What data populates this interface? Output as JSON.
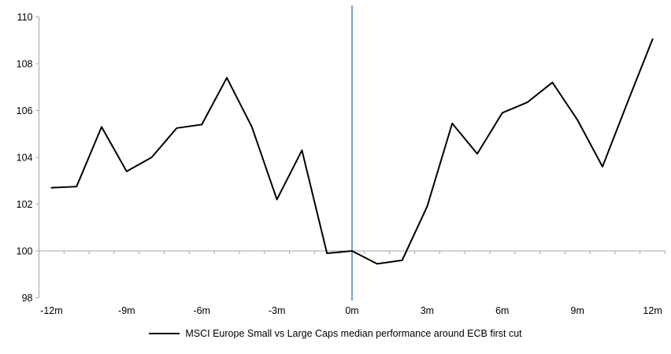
{
  "chart_data": {
    "type": "line",
    "title": "",
    "xlabel": "",
    "ylabel": "",
    "x_months": [
      -12,
      -11,
      -10,
      -9,
      -8,
      -7,
      -6,
      -5,
      -4,
      -3,
      -2,
      -1,
      0,
      1,
      2,
      3,
      4,
      5,
      6,
      7,
      8,
      9,
      10,
      11,
      12
    ],
    "series": [
      {
        "name": "MSCI Europe Small vs Large Caps median performance around ECB first cut",
        "color": "#000000",
        "values": [
          102.7,
          102.75,
          105.3,
          103.4,
          104.0,
          105.25,
          105.4,
          107.4,
          105.3,
          102.2,
          104.3,
          99.9,
          100.0,
          99.45,
          99.6,
          101.9,
          105.45,
          104.15,
          105.9,
          106.35,
          107.2,
          105.6,
          103.6,
          106.35,
          109.05
        ]
      }
    ],
    "ylim": [
      98,
      110
    ],
    "yticks": [
      110,
      108,
      106,
      104,
      102,
      100,
      98
    ],
    "xticks": [
      {
        "month": -12,
        "label": "-12m"
      },
      {
        "month": -9,
        "label": "-9m"
      },
      {
        "month": -6,
        "label": "-6m"
      },
      {
        "month": -3,
        "label": "-3m"
      },
      {
        "month": 0,
        "label": "0m"
      },
      {
        "month": 3,
        "label": "3m"
      },
      {
        "month": 6,
        "label": "6m"
      },
      {
        "month": 9,
        "label": "9m"
      },
      {
        "month": 12,
        "label": "12m"
      }
    ],
    "baseline_value": 100,
    "event_line_month": 0,
    "grid": "off",
    "legend_position": "bottom-center",
    "colors": {
      "line": "#000000",
      "event_line": "#7ca3cc",
      "axis": "#a6a6a6",
      "text": "#000000",
      "background": "#ffffff"
    }
  }
}
